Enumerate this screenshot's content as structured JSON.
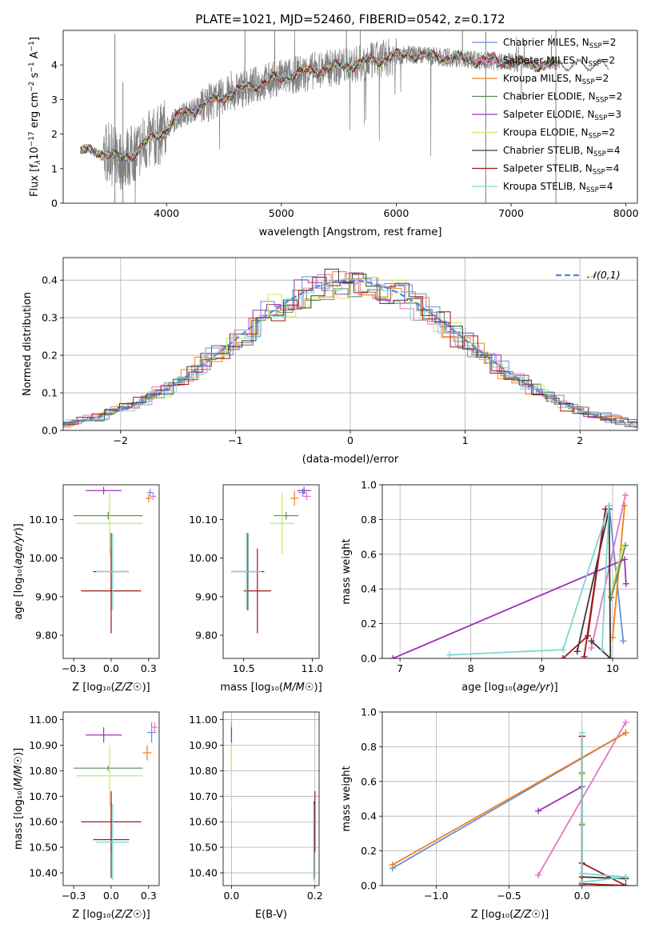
{
  "figure_title": "PLATE=1021, MJD=52460, FIBERID=0542, z=0.172",
  "colors": {
    "Chabrier MILES": "#6a8fd6",
    "Salpeter MILES": "#e377c2",
    "Kroupa MILES": "#f07f1c",
    "Chabrier ELODIE": "#5a8a5a",
    "Salpeter ELODIE": "#9b34b5",
    "Kroupa ELODIE": "#c9e860",
    "Chabrier STELIB": "#3a3a3a",
    "Salpeter STELIB": "#a01818",
    "Kroupa STELIB": "#7fd6d0",
    "observed": "#808080",
    "normal": "#5b84d6"
  },
  "chart_data": [
    {
      "id": "spectrum",
      "type": "line",
      "xlabel": "wavelength [Angstrom, rest frame]",
      "ylabel": "Flux [f$_λ$10$^{-17}$ erg cm$^{-2}$ s$^{-1}$ A$^{-1}$]",
      "xlim": [
        3100,
        8100
      ],
      "ylim": [
        0,
        5
      ],
      "xticks": [
        4000,
        5000,
        6000,
        7000,
        8000
      ],
      "yticks": [
        0,
        1,
        2,
        3,
        4
      ],
      "legend_position": "upper-right",
      "legend": [
        {
          "model": "Chabrier MILES",
          "label": "Chabrier MILES, N",
          "nssp": "=2"
        },
        {
          "model": "Salpeter MILES",
          "label": "Salpeter MILES, N",
          "nssp": "=2"
        },
        {
          "model": "Kroupa MILES",
          "label": "Kroupa MILES, N",
          "nssp": "=2"
        },
        {
          "model": "Chabrier ELODIE",
          "label": "Chabrier ELODIE, N",
          "nssp": "=2"
        },
        {
          "model": "Salpeter ELODIE",
          "label": "Salpeter ELODIE, N",
          "nssp": "=3"
        },
        {
          "model": "Kroupa ELODIE",
          "label": "Kroupa ELODIE, N",
          "nssp": "=2"
        },
        {
          "model": "Chabrier STELIB",
          "label": "Chabrier STELIB, N",
          "nssp": "=4"
        },
        {
          "model": "Salpeter STELIB",
          "label": "Salpeter STELIB, N",
          "nssp": "=4"
        },
        {
          "model": "Kroupa STELIB",
          "label": "Kroupa STELIB, N",
          "nssp": "=4"
        }
      ],
      "continuum": {
        "x": [
          3250,
          3500,
          3600,
          3700,
          3800,
          3950,
          4100,
          4300,
          4500,
          4700,
          4900,
          5100,
          5300,
          5500,
          5700,
          5900,
          6100,
          6300,
          6500,
          6700,
          6900,
          7100,
          7300,
          7400
        ],
        "y": [
          1.5,
          1.45,
          1.25,
          1.4,
          1.7,
          2.0,
          2.5,
          2.8,
          3.1,
          3.35,
          3.55,
          3.7,
          3.85,
          3.95,
          4.05,
          4.2,
          4.3,
          4.25,
          4.2,
          4.15,
          4.1,
          4.05,
          4.0,
          4.0
        ]
      },
      "data_range": [
        3250,
        7850
      ],
      "model_range": [
        3250,
        7400
      ]
    },
    {
      "id": "residuals",
      "type": "histogram",
      "xlabel": "(data-model)/error",
      "ylabel": "Normed distribution",
      "xlim": [
        -2.5,
        2.5
      ],
      "ylim": [
        0,
        0.46
      ],
      "xticks": [
        -2,
        -1,
        0,
        1,
        2
      ],
      "yticks": [
        0.0,
        0.1,
        0.2,
        0.3,
        0.4
      ],
      "grid": true,
      "bin_width": 0.12,
      "legend_position": "upper-right",
      "normal_label": "𝒩(0,1)"
    },
    {
      "id": "age-vs-Z",
      "type": "errorbar",
      "xlabel": "Z [log₁₀(Z/Z☉)]",
      "ylabel": "age  [log₁₀(age/yr)]",
      "xlim": [
        -0.32,
        0.32
      ],
      "ylim": [
        9.74,
        10.19
      ],
      "xticks": [
        -0.25,
        0.0,
        0.25
      ],
      "yticks": [
        9.8,
        9.9,
        10.0,
        10.1
      ],
      "points": [
        {
          "model": "Chabrier MILES",
          "x": 0.26,
          "xerr": 0.02,
          "y": 10.17,
          "yerr": 0.01
        },
        {
          "model": "Salpeter MILES",
          "x": 0.28,
          "xerr": 0.02,
          "y": 10.16,
          "yerr": 0.01
        },
        {
          "model": "Kroupa MILES",
          "x": 0.25,
          "xerr": 0.02,
          "y": 10.155,
          "yerr": 0.01
        },
        {
          "model": "Chabrier ELODIE",
          "x": -0.02,
          "xerr": 0.23,
          "y": 10.11,
          "yerr": 0.01
        },
        {
          "model": "Salpeter ELODIE",
          "x": -0.05,
          "xerr": 0.12,
          "y": 10.175,
          "yerr": 0.01
        },
        {
          "model": "Kroupa ELODIE",
          "x": -0.01,
          "xerr": 0.22,
          "y": 10.09,
          "yerr": 0.08
        },
        {
          "model": "Chabrier STELIB",
          "x": 0.0,
          "xerr": 0.12,
          "y": 9.965,
          "yerr": 0.1
        },
        {
          "model": "Salpeter STELIB",
          "x": 0.0,
          "xerr": 0.2,
          "y": 9.915,
          "yerr": 0.11
        },
        {
          "model": "Kroupa STELIB",
          "x": 0.01,
          "xerr": 0.11,
          "y": 9.965,
          "yerr": 0.1
        }
      ]
    },
    {
      "id": "age-vs-mass",
      "type": "errorbar",
      "xlabel": "mass [log₁₀(M/M☉)]",
      "ylabel": "",
      "xlim": [
        10.35,
        11.05
      ],
      "ylim": [
        9.74,
        10.19
      ],
      "xticks": [
        10.5,
        11.0
      ],
      "yticks": [
        9.8,
        9.9,
        10.0,
        10.1
      ],
      "points": [
        {
          "model": "Chabrier MILES",
          "x": 10.93,
          "xerr": 0.03,
          "y": 10.17,
          "yerr": 0.01
        },
        {
          "model": "Salpeter MILES",
          "x": 10.96,
          "xerr": 0.03,
          "y": 10.16,
          "yerr": 0.01
        },
        {
          "model": "Kroupa MILES",
          "x": 10.87,
          "xerr": 0.03,
          "y": 10.155,
          "yerr": 0.02
        },
        {
          "model": "Chabrier ELODIE",
          "x": 10.81,
          "xerr": 0.09,
          "y": 10.11,
          "yerr": 0.01
        },
        {
          "model": "Salpeter ELODIE",
          "x": 10.94,
          "xerr": 0.05,
          "y": 10.175,
          "yerr": 0.01
        },
        {
          "model": "Kroupa ELODIE",
          "x": 10.78,
          "xerr": 0.09,
          "y": 10.09,
          "yerr": 0.08
        },
        {
          "model": "Chabrier STELIB",
          "x": 10.53,
          "xerr": 0.12,
          "y": 9.965,
          "yerr": 0.1
        },
        {
          "model": "Salpeter STELIB",
          "x": 10.6,
          "xerr": 0.1,
          "y": 9.915,
          "yerr": 0.11
        },
        {
          "model": "Kroupa STELIB",
          "x": 10.52,
          "xerr": 0.11,
          "y": 9.965,
          "yerr": 0.1
        }
      ]
    },
    {
      "id": "weight-vs-age",
      "type": "line",
      "xlabel": "age  [log₁₀(age/yr)]",
      "ylabel": "mass weight",
      "xlim": [
        6.75,
        10.35
      ],
      "ylim": [
        0,
        1
      ],
      "xticks": [
        7,
        8,
        9,
        10
      ],
      "yticks": [
        0.0,
        0.2,
        0.4,
        0.6,
        0.8,
        1.0
      ],
      "grid": true,
      "series": [
        {
          "model": "Chabrier MILES",
          "x": [
            10.15,
            9.95
          ],
          "y": [
            0.1,
            0.88
          ]
        },
        {
          "model": "Salpeter MILES",
          "x": [
            9.7,
            10.18
          ],
          "y": [
            0.06,
            0.94
          ]
        },
        {
          "model": "Kroupa MILES",
          "x": [
            10.0,
            10.17
          ],
          "y": [
            0.12,
            0.88
          ]
        },
        {
          "model": "Chabrier ELODIE",
          "x": [
            10.18,
            9.98
          ],
          "y": [
            0.65,
            0.35
          ]
        },
        {
          "model": "Salpeter ELODIE",
          "x": [
            6.9,
            10.17,
            10.19
          ],
          "y": [
            0.0,
            0.57,
            0.43
          ]
        },
        {
          "model": "Kroupa ELODIE",
          "x": [
            9.97,
            10.14
          ],
          "y": [
            0.36,
            0.64
          ]
        },
        {
          "model": "Chabrier STELIB",
          "x": [
            9.5,
            9.95,
            9.97,
            9.7
          ],
          "y": [
            0.04,
            0.86,
            0.0,
            0.1
          ]
        },
        {
          "model": "Salpeter STELIB",
          "x": [
            9.3,
            9.65,
            9.9,
            9.6
          ],
          "y": [
            0.0,
            0.13,
            0.86,
            0.01
          ]
        },
        {
          "model": "Kroupa STELIB",
          "x": [
            7.7,
            9.3,
            9.95,
            9.85
          ],
          "y": [
            0.02,
            0.05,
            0.88,
            0.05
          ]
        }
      ]
    },
    {
      "id": "mass-vs-Z",
      "type": "errorbar",
      "xlabel": "Z [log₁₀(Z/Z☉)]",
      "ylabel": "mass [log₁₀(M/M☉)]",
      "xlim": [
        -0.32,
        0.32
      ],
      "ylim": [
        10.35,
        11.03
      ],
      "xticks": [
        -0.25,
        0.0,
        0.25
      ],
      "yticks": [
        10.4,
        10.5,
        10.6,
        10.7,
        10.8,
        10.9,
        11.0
      ],
      "points": [
        {
          "model": "Chabrier MILES",
          "x": 0.27,
          "xerr": 0.03,
          "y": 10.95,
          "yerr": 0.04
        },
        {
          "model": "Salpeter MILES",
          "x": 0.29,
          "xerr": 0.02,
          "y": 10.97,
          "yerr": 0.02
        },
        {
          "model": "Kroupa MILES",
          "x": 0.24,
          "xerr": 0.03,
          "y": 10.87,
          "yerr": 0.03
        },
        {
          "model": "Chabrier ELODIE",
          "x": -0.02,
          "xerr": 0.23,
          "y": 10.81,
          "yerr": 0.01
        },
        {
          "model": "Salpeter ELODIE",
          "x": -0.05,
          "xerr": 0.12,
          "y": 10.94,
          "yerr": 0.03
        },
        {
          "model": "Kroupa ELODIE",
          "x": -0.01,
          "xerr": 0.22,
          "y": 10.78,
          "yerr": 0.12
        },
        {
          "model": "Chabrier STELIB",
          "x": 0.0,
          "xerr": 0.12,
          "y": 10.53,
          "yerr": 0.15
        },
        {
          "model": "Salpeter STELIB",
          "x": 0.0,
          "xerr": 0.2,
          "y": 10.6,
          "yerr": 0.12
        },
        {
          "model": "Kroupa STELIB",
          "x": 0.01,
          "xerr": 0.11,
          "y": 10.52,
          "yerr": 0.15
        }
      ]
    },
    {
      "id": "mass-vs-EBV",
      "type": "errorbar",
      "xlabel": "E(B-V)",
      "ylabel": "",
      "xlim": [
        -0.02,
        0.21
      ],
      "ylim": [
        10.35,
        11.03
      ],
      "xticks": [
        0.0,
        0.2
      ],
      "yticks": [
        10.4,
        10.5,
        10.6,
        10.7,
        10.8,
        10.9,
        11.0
      ],
      "grid": true,
      "points": [
        {
          "model": "Chabrier MILES",
          "x": 0.0,
          "xerr": 0.001,
          "y": 10.95,
          "yerr": 0.04
        },
        {
          "model": "Salpeter MILES",
          "x": 0.0,
          "xerr": 0.001,
          "y": 10.97,
          "yerr": 0.02
        },
        {
          "model": "Kroupa MILES",
          "x": 0.0,
          "xerr": 0.001,
          "y": 10.87,
          "yerr": 0.03
        },
        {
          "model": "Chabrier ELODIE",
          "x": 0.0,
          "xerr": 0.001,
          "y": 10.81,
          "yerr": 0.01
        },
        {
          "model": "Salpeter ELODIE",
          "x": 0.0,
          "xerr": 0.001,
          "y": 10.94,
          "yerr": 0.03
        },
        {
          "model": "Kroupa ELODIE",
          "x": 0.0,
          "xerr": 0.001,
          "y": 10.78,
          "yerr": 0.12
        },
        {
          "model": "Chabrier STELIB",
          "x": 0.198,
          "xerr": 0.001,
          "y": 10.53,
          "yerr": 0.15
        },
        {
          "model": "Salpeter STELIB",
          "x": 0.2,
          "xerr": 0.001,
          "y": 10.6,
          "yerr": 0.12
        },
        {
          "model": "Kroupa STELIB",
          "x": 0.197,
          "xerr": 0.001,
          "y": 10.52,
          "yerr": 0.15
        }
      ]
    },
    {
      "id": "weight-vs-Z",
      "type": "line",
      "xlabel": "Z [log₁₀(Z/Z☉)]",
      "ylabel": "mass weight",
      "xlim": [
        -1.37,
        0.38
      ],
      "ylim": [
        0,
        1
      ],
      "xticks": [
        -1.0,
        -0.5,
        0.0
      ],
      "yticks": [
        0.0,
        0.2,
        0.4,
        0.6,
        0.8,
        1.0
      ],
      "grid": true,
      "series": [
        {
          "model": "Chabrier MILES",
          "x": [
            -1.3,
            0.3
          ],
          "y": [
            0.1,
            0.88
          ]
        },
        {
          "model": "Salpeter MILES",
          "x": [
            -0.3,
            0.3
          ],
          "y": [
            0.06,
            0.94
          ]
        },
        {
          "model": "Kroupa MILES",
          "x": [
            -1.3,
            0.3
          ],
          "y": [
            0.12,
            0.88
          ]
        },
        {
          "model": "Chabrier ELODIE",
          "x": [
            0.0,
            0.0
          ],
          "y": [
            0.65,
            0.35
          ]
        },
        {
          "model": "Salpeter ELODIE",
          "x": [
            -0.3,
            0.0,
            0.0
          ],
          "y": [
            0.43,
            0.57,
            0.0
          ]
        },
        {
          "model": "Kroupa ELODIE",
          "x": [
            0.0,
            0.0
          ],
          "y": [
            0.36,
            0.64
          ]
        },
        {
          "model": "Chabrier STELIB",
          "x": [
            0.0,
            0.0,
            0.0,
            0.3
          ],
          "y": [
            0.86,
            0.0,
            0.05,
            0.04
          ]
        },
        {
          "model": "Salpeter STELIB",
          "x": [
            0.0,
            0.3,
            0.0,
            0.0
          ],
          "y": [
            0.13,
            0.0,
            0.01,
            0.86
          ]
        },
        {
          "model": "Kroupa STELIB",
          "x": [
            0.0,
            0.0,
            0.3,
            0.0
          ],
          "y": [
            0.88,
            0.07,
            0.05,
            0.02
          ]
        }
      ]
    }
  ]
}
